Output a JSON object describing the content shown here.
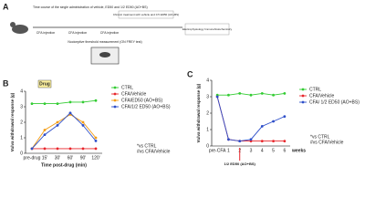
{
  "diagram": {
    "panel_label": "A",
    "title": "Time course of the single administration of vehicle, ED50 and 1/2 ED50 (AO+BS)",
    "step1": "CFA injection",
    "step2": "CFA injection",
    "step3": "CFA injection",
    "chronic": "Chronic treatment with vehicle and 0.5 ED50 (AO+BS)",
    "end": "Electrophysiology Immunohistochemistry",
    "measure": "Nociceptive threshold measurement (ON FREY test)"
  },
  "chart_data": [
    {
      "type": "line",
      "panel_label": "B",
      "callout": "Drug",
      "ylabel": "Vulva withdrawal response (g)",
      "xlabel": "Time post-drug (min)",
      "categories": [
        "pre-drug",
        "15'",
        "30'",
        "60'",
        "90'",
        "120'"
      ],
      "ylim": [
        0,
        4
      ],
      "yticks": [
        0,
        1,
        2,
        3,
        4
      ],
      "series": [
        {
          "name": "CTRL",
          "color": "#33cc33",
          "values": [
            3.2,
            3.2,
            3.2,
            3.3,
            3.3,
            3.4
          ]
        },
        {
          "name": "CFA/Vehicle",
          "color": "#e8262b",
          "values": [
            0.3,
            0.3,
            0.3,
            0.3,
            0.3,
            0.3
          ]
        },
        {
          "name": "CFA/ED50 (AO+BS)",
          "color": "#f39c12",
          "values": [
            0.3,
            1.5,
            2.0,
            2.5,
            2.0,
            1.0
          ]
        },
        {
          "name": "CFA/1/2 ED50 (AO+BS)",
          "color": "#2d4ec9",
          "values": [
            0.3,
            1.2,
            1.8,
            2.6,
            1.8,
            0.8
          ]
        }
      ],
      "annotations": [
        "*vs CTRL",
        "#vs CFA/Vehicle"
      ]
    },
    {
      "type": "line",
      "panel_label": "C",
      "arrow_label": "1/2 ED50 (AO+BS)",
      "ylabel": "Vulva withdrawal response (g)",
      "xlabel": "weeks",
      "categories": [
        "pre-CFA",
        "1",
        "2",
        "3",
        "4",
        "5",
        "6"
      ],
      "ylim": [
        0,
        4
      ],
      "yticks": [
        0,
        1,
        2,
        3,
        4
      ],
      "series": [
        {
          "name": "CTRL",
          "color": "#33cc33",
          "values": [
            3.1,
            3.1,
            3.2,
            3.1,
            3.2,
            3.1,
            3.2
          ]
        },
        {
          "name": "CFA/Vehicle",
          "color": "#e8262b",
          "values": [
            3.0,
            0.4,
            0.3,
            0.3,
            0.3,
            0.3,
            0.3
          ]
        },
        {
          "name": "CFA/ 1/2 ED50 (AO+BS)",
          "color": "#2d4ec9",
          "values": [
            3.0,
            0.4,
            0.3,
            0.4,
            1.2,
            1.5,
            1.8
          ]
        }
      ],
      "annotations": [
        "*vs CTRL",
        "#vs CFA/Vehicle"
      ]
    }
  ]
}
